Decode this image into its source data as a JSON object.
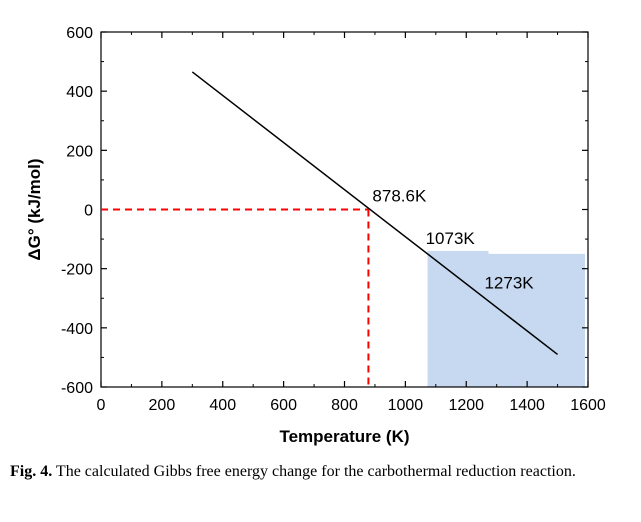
{
  "chart_data": {
    "type": "line",
    "xlabel": "Temperature (K)",
    "ylabel": "ΔG° (kJ/mol)",
    "xlim": [
      0,
      1600
    ],
    "ylim": [
      -600,
      600
    ],
    "xticks": [
      0,
      200,
      400,
      600,
      800,
      1000,
      1200,
      1400,
      1600
    ],
    "yticks": [
      600,
      400,
      200,
      0,
      -200,
      -400,
      -600
    ],
    "series": [
      {
        "x": [
          300,
          1500
        ],
        "y": [
          465,
          -490
        ],
        "color": "#000000"
      }
    ],
    "reference_lines": {
      "x_at_zero": 878.6,
      "y": 0,
      "color": "#ff0000",
      "style": "dashed"
    },
    "shaded_regions": [
      {
        "x": [
          1073,
          1590
        ],
        "y": [
          -600,
          -150
        ],
        "color": "#c6d9f1"
      },
      {
        "x": [
          1073,
          1273
        ],
        "y": [
          -595,
          -140
        ],
        "color": "#c6d9f1"
      }
    ],
    "annotations": [
      {
        "text": "878.6K",
        "x": 878.6,
        "y": 0
      },
      {
        "text": "1073K",
        "x": 1073,
        "y": -150
      },
      {
        "text": "1273K",
        "x": 1273,
        "y": -300
      }
    ],
    "grid": false,
    "legend": "none"
  },
  "caption": {
    "label": "Fig. 4.",
    "text": " The calculated Gibbs free energy change for the carbothermal reduction reaction."
  }
}
